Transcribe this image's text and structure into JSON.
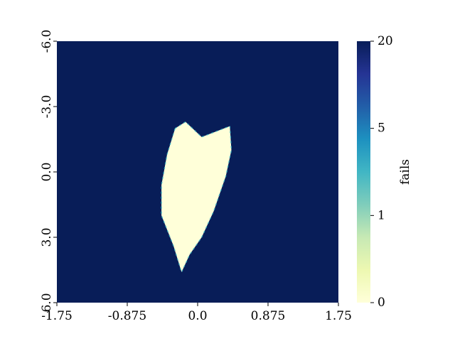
{
  "chart_data": {
    "type": "heatmap",
    "title": "",
    "xlabel": "",
    "ylabel": "",
    "x_ticks": [
      "-1.75",
      "-0.875",
      "0.0",
      "0.875",
      "1.75"
    ],
    "x_tick_values": [
      -1.75,
      -0.875,
      0.0,
      0.875,
      1.75
    ],
    "y_ticks": [
      "-6.0",
      "-3.0",
      "0.0",
      "3.0",
      "6.0"
    ],
    "y_tick_values": [
      -6.0,
      -3.0,
      0.0,
      3.0,
      6.0
    ],
    "xlim": [
      -1.75,
      1.75
    ],
    "ylim": [
      -6.0,
      6.0
    ],
    "y_axis_inverted": true,
    "colorbar": {
      "label": "fails",
      "tick_labels": [
        "0",
        "1",
        "5",
        "20"
      ],
      "tick_values": [
        0,
        1,
        5,
        20
      ],
      "range": [
        0,
        20
      ],
      "colors": [
        "#ffffd9",
        "#edf8b1",
        "#c7e9b4",
        "#7fcdbb",
        "#41b6c4",
        "#1d91c0",
        "#225ea8",
        "#253494",
        "#081d58"
      ]
    },
    "background_value": 20,
    "regions": [
      {
        "value": 0,
        "polygon": [
          [
            -0.28,
            -2.0
          ],
          [
            -0.15,
            -2.3
          ],
          [
            0.05,
            -1.6
          ],
          [
            0.4,
            -2.1
          ],
          [
            0.42,
            -1.0
          ],
          [
            0.35,
            0.2
          ],
          [
            0.2,
            1.8
          ],
          [
            0.05,
            3.0
          ],
          [
            -0.1,
            3.8
          ],
          [
            -0.2,
            4.6
          ],
          [
            -0.3,
            3.4
          ],
          [
            -0.45,
            2.0
          ],
          [
            -0.45,
            0.6
          ],
          [
            -0.38,
            -0.8
          ]
        ]
      }
    ]
  }
}
